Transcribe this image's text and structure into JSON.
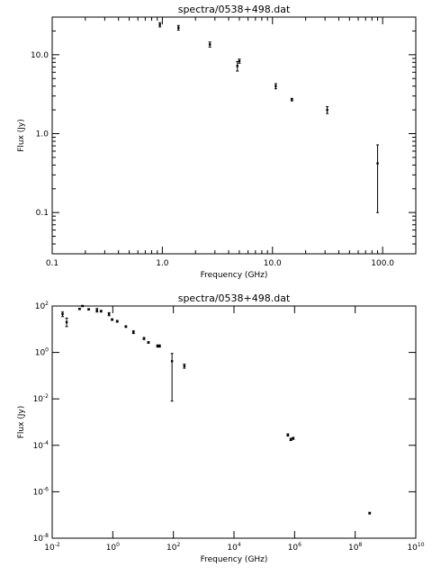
{
  "chart_data": [
    {
      "type": "scatter",
      "title": "spectra/0538+498.dat",
      "xlabel": "Frequency (GHz)",
      "ylabel": "Flux (Jy)",
      "xscale": "log",
      "yscale": "log",
      "xlim": [
        0.1,
        200
      ],
      "ylim": [
        0.03,
        30
      ],
      "xticks": [
        {
          "value": 0.1,
          "label": "0.1"
        },
        {
          "value": 1,
          "label": "1.0"
        },
        {
          "value": 10,
          "label": "10.0"
        },
        {
          "value": 100,
          "label": "100.0"
        }
      ],
      "yticks": [
        {
          "value": 0.1,
          "label": "0.1"
        },
        {
          "value": 1,
          "label": "1.0"
        },
        {
          "value": 10,
          "label": "10.0"
        }
      ],
      "points": [
        {
          "x": 0.95,
          "y": 24,
          "lo": 22.5,
          "hi": 25.5
        },
        {
          "x": 1.4,
          "y": 22,
          "lo": 20.5,
          "hi": 23.5
        },
        {
          "x": 2.7,
          "y": 13.5,
          "lo": 12.5,
          "hi": 14.5
        },
        {
          "x": 4.8,
          "y": 7.2,
          "lo": 6.2,
          "hi": 8.2
        },
        {
          "x": 5.0,
          "y": 8.3,
          "lo": 7.8,
          "hi": 8.8
        },
        {
          "x": 10.7,
          "y": 4.0,
          "lo": 3.7,
          "hi": 4.3
        },
        {
          "x": 15,
          "y": 2.7,
          "lo": 2.6,
          "hi": 2.8
        },
        {
          "x": 31.4,
          "y": 2.0,
          "lo": 1.8,
          "hi": 2.2
        },
        {
          "x": 90,
          "y": 0.42,
          "lo": 0.1,
          "hi": 0.72
        }
      ]
    },
    {
      "type": "scatter",
      "title": "spectra/0538+498.dat",
      "xlabel": "Frequency (GHz)",
      "ylabel": "Flux (Jy)",
      "xscale": "log",
      "yscale": "log",
      "xlim": [
        0.01,
        10000000000.0
      ],
      "ylim": [
        1e-08,
        100
      ],
      "xticks": [
        {
          "value": 0.01,
          "base": "10",
          "exp": "-2"
        },
        {
          "value": 1,
          "base": "10",
          "exp": "0"
        },
        {
          "value": 100,
          "base": "10",
          "exp": "2"
        },
        {
          "value": 10000,
          "base": "10",
          "exp": "4"
        },
        {
          "value": 1000000,
          "base": "10",
          "exp": "6"
        },
        {
          "value": 100000000,
          "base": "10",
          "exp": "8"
        },
        {
          "value": 10000000000,
          "base": "10",
          "exp": "10"
        }
      ],
      "yticks": [
        {
          "value": 1e-08,
          "base": "10",
          "exp": "-8"
        },
        {
          "value": 1e-06,
          "base": "10",
          "exp": "-6"
        },
        {
          "value": 0.0001,
          "base": "10",
          "exp": "-4"
        },
        {
          "value": 0.01,
          "base": "10",
          "exp": "-2"
        },
        {
          "value": 1,
          "base": "10",
          "exp": "0"
        },
        {
          "value": 100,
          "base": "10",
          "exp": "2"
        }
      ],
      "points": [
        {
          "x": 0.022,
          "y": 45,
          "lo": 35,
          "hi": 55
        },
        {
          "x": 0.03,
          "y": 20,
          "lo": 13,
          "hi": 30
        },
        {
          "x": 0.08,
          "y": 75,
          "lo": 70,
          "hi": 80
        },
        {
          "x": 0.1,
          "y": 100,
          "lo": 95,
          "hi": 105
        },
        {
          "x": 0.16,
          "y": 72,
          "lo": 67,
          "hi": 77
        },
        {
          "x": 0.3,
          "y": 65,
          "lo": 55,
          "hi": 78
        },
        {
          "x": 0.41,
          "y": 60,
          "lo": 55,
          "hi": 65
        },
        {
          "x": 0.75,
          "y": 45,
          "lo": 38,
          "hi": 52
        },
        {
          "x": 0.95,
          "y": 26,
          "lo": 24,
          "hi": 28
        },
        {
          "x": 1.4,
          "y": 22,
          "lo": 20,
          "hi": 24
        },
        {
          "x": 2.7,
          "y": 13,
          "lo": 12,
          "hi": 14
        },
        {
          "x": 4.8,
          "y": 7.5,
          "lo": 6.5,
          "hi": 8.5
        },
        {
          "x": 10.7,
          "y": 4.0,
          "lo": 3.6,
          "hi": 4.4
        },
        {
          "x": 15,
          "y": 2.7,
          "lo": 2.5,
          "hi": 2.9
        },
        {
          "x": 30,
          "y": 1.9,
          "lo": 1.7,
          "hi": 2.1
        },
        {
          "x": 35,
          "y": 1.9,
          "lo": 1.7,
          "hi": 2.1
        },
        {
          "x": 90,
          "y": 0.42,
          "lo": 0.008,
          "hi": 0.9
        },
        {
          "x": 230,
          "y": 0.26,
          "lo": 0.21,
          "hi": 0.31
        },
        {
          "x": 600000,
          "y": 0.00028,
          "lo": 0.00025,
          "hi": 0.00031
        },
        {
          "x": 750000,
          "y": 0.00018,
          "lo": 0.00016,
          "hi": 0.0002
        },
        {
          "x": 900000,
          "y": 0.0002,
          "lo": 0.00018,
          "hi": 0.00022
        },
        {
          "x": 300000000,
          "y": 1.2e-07,
          "lo": 1.1e-07,
          "hi": 1.3e-07
        }
      ]
    }
  ]
}
